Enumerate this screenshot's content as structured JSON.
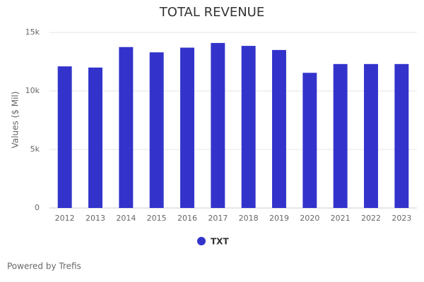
{
  "chart_data": {
    "type": "bar",
    "title": "TOTAL REVENUE",
    "y_label": "Values ($ Mil)",
    "credit": "Powered by Trefis",
    "categories": [
      "2012",
      "2013",
      "2014",
      "2015",
      "2016",
      "2017",
      "2018",
      "2019",
      "2020",
      "2021",
      "2022",
      "2023"
    ],
    "series": [
      {
        "name": "TXT",
        "color": "#3333cc",
        "values": [
          12100,
          12000,
          13750,
          13300,
          13700,
          14100,
          13850,
          13500,
          11550,
          12300,
          12300,
          12300
        ]
      }
    ],
    "ylim": [
      0,
      15000
    ],
    "yticks": [
      0,
      {
        "value": 5000,
        "label": "5k"
      },
      {
        "value": 10000,
        "label": "10k"
      },
      {
        "value": 15000,
        "label": "15k"
      }
    ],
    "grid": true
  }
}
